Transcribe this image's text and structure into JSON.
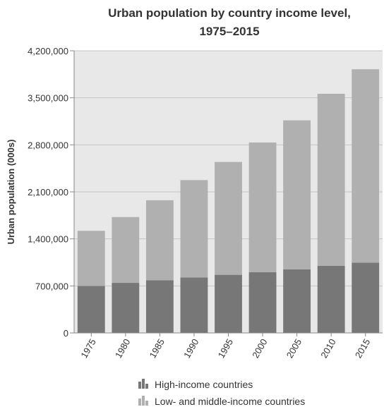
{
  "chart_data": {
    "type": "bar",
    "stacked": true,
    "title": "Urban population by country income level, 1975–2015",
    "title_lines": [
      "Urban population by country income level,",
      "1975–2015"
    ],
    "xlabel": "",
    "ylabel": "Urban population (000s)",
    "categories": [
      "1975",
      "1980",
      "1985",
      "1990",
      "1995",
      "2000",
      "2005",
      "2010",
      "2015"
    ],
    "ylim": [
      0,
      4200000
    ],
    "y_ticks": [
      0,
      700000,
      1400000,
      2100000,
      2800000,
      3500000,
      4200000
    ],
    "y_tick_labels": [
      "0",
      "700,000",
      "1,400,000",
      "2,100,000",
      "2,800,000",
      "3,500,000",
      "4,200,000"
    ],
    "grid": true,
    "legend_position": "bottom",
    "series": [
      {
        "name": "High-income countries",
        "color": "#777777",
        "values": [
          700000,
          745000,
          785000,
          825000,
          865000,
          905000,
          945000,
          1000000,
          1045000
        ]
      },
      {
        "name": "Low- and middle-income countries",
        "color": "#b0b0b0",
        "values": [
          820000,
          980000,
          1190000,
          1450000,
          1680000,
          1930000,
          2220000,
          2560000,
          2880000
        ]
      }
    ]
  }
}
